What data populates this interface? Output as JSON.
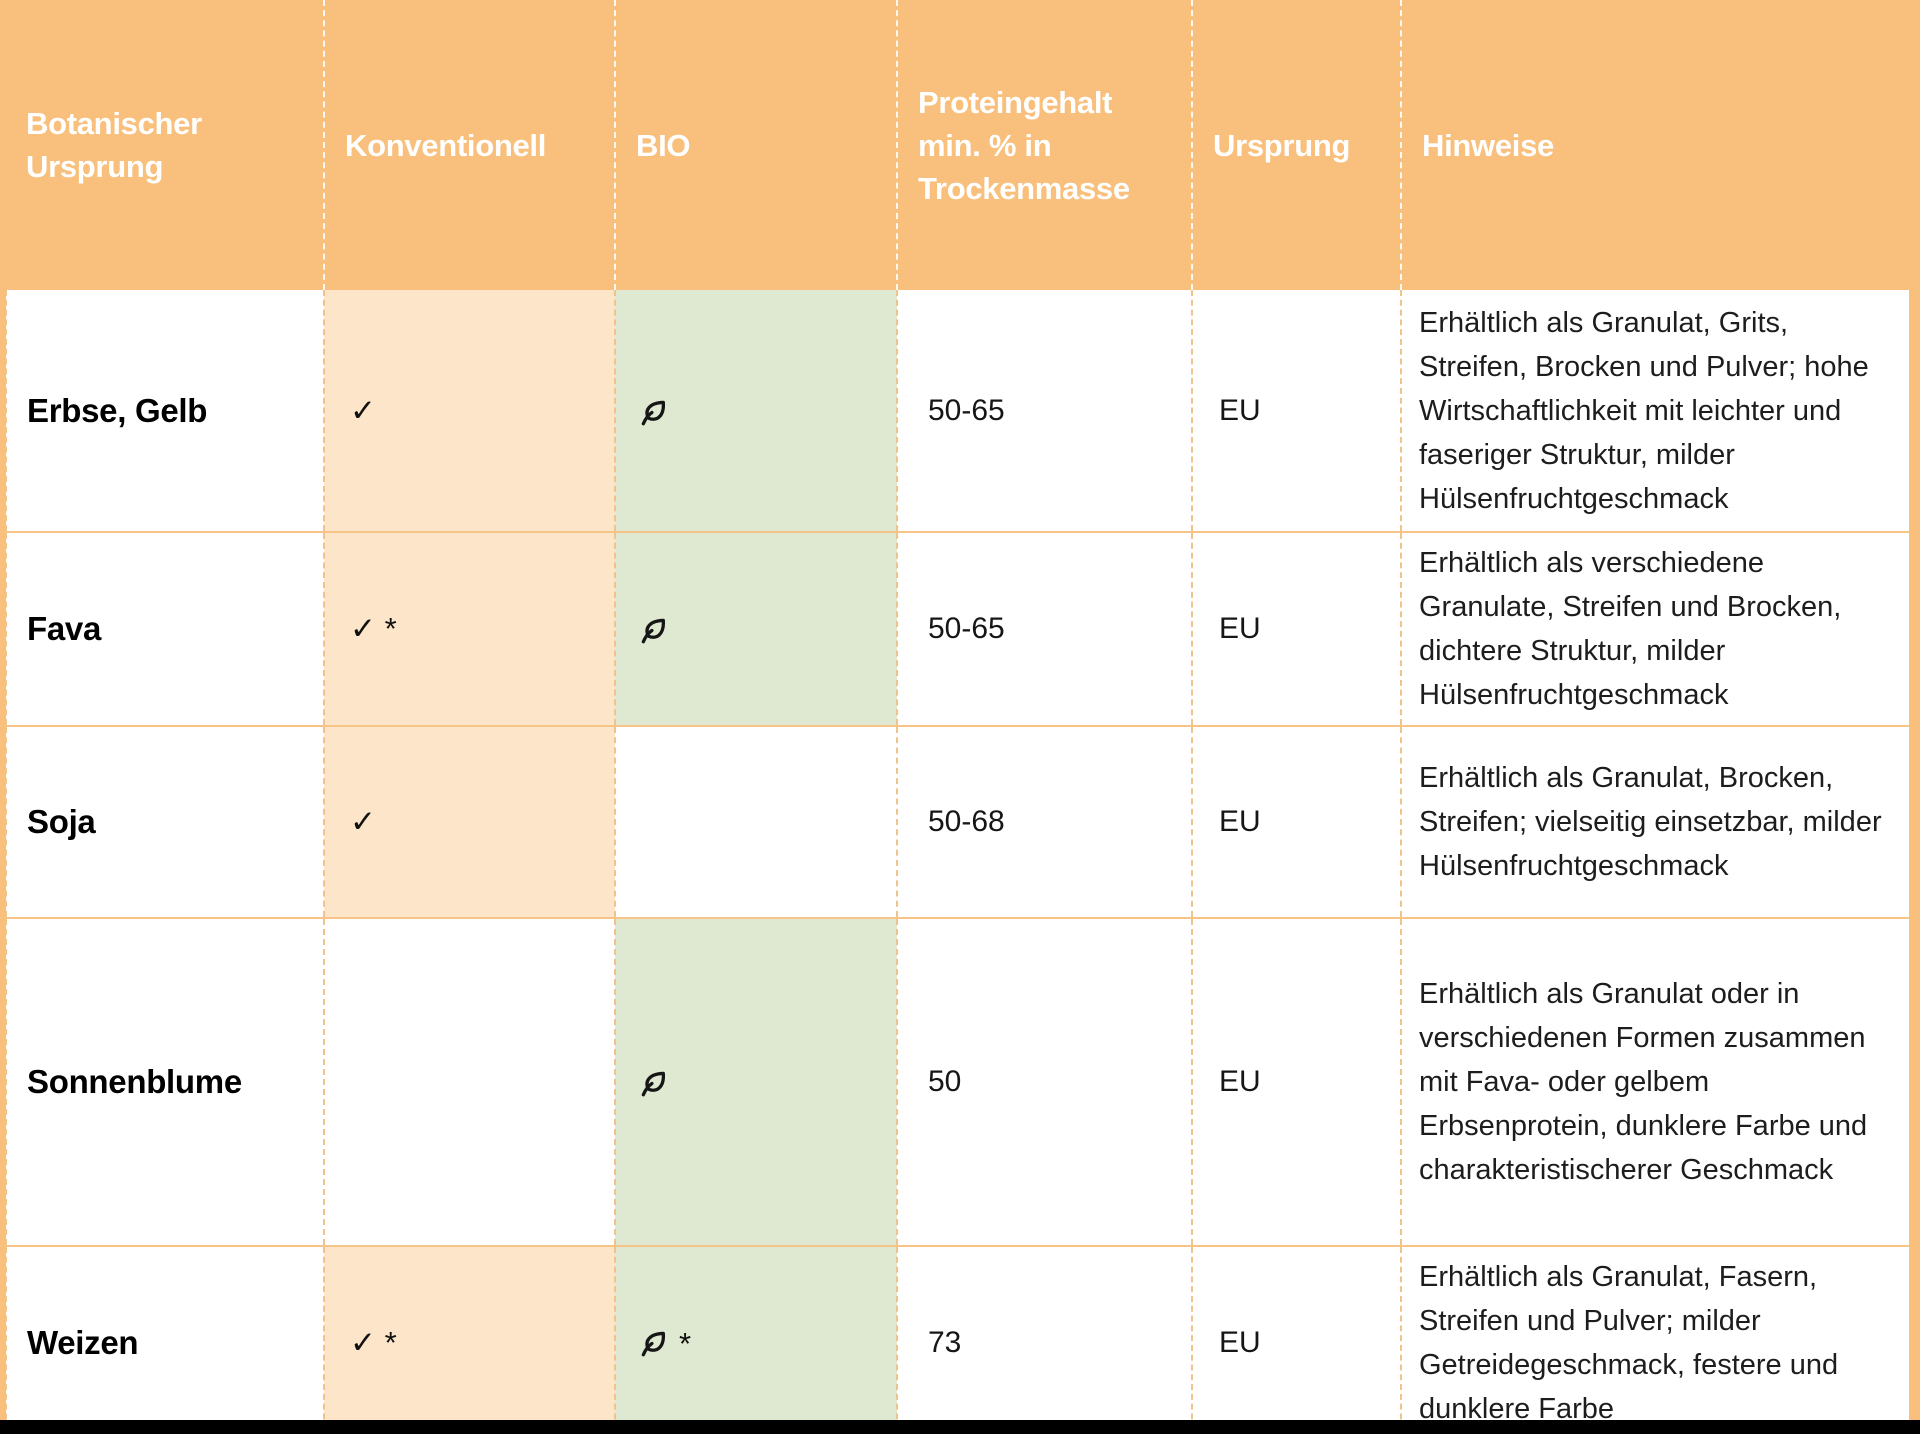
{
  "table": {
    "columns": [
      {
        "label": "Botanischer Ursprung"
      },
      {
        "label": "Konventionell"
      },
      {
        "label": "BIO"
      },
      {
        "label": "Proteingehalt min. % in Trockenmasse"
      },
      {
        "label": "Ursprung"
      },
      {
        "label": "Hinweise"
      }
    ],
    "rows": [
      {
        "name": "Erbse, Gelb",
        "konventionell": "✓",
        "bio_leaf": true,
        "bio_note": "",
        "protein": "50-65",
        "ursprung": "EU",
        "hinweise": "Erhältlich als Granulat, Grits, Streifen, Brocken und Pulver; hohe Wirtschaftlichkeit mit leichter und faseriger Struktur, milder Hülsenfruchtgeschmack"
      },
      {
        "name": "Fava",
        "konventionell": "✓ *",
        "bio_leaf": true,
        "bio_note": "",
        "protein": "50-65",
        "ursprung": "EU",
        "hinweise": "Erhältlich als verschiedene Granulate, Streifen und Brocken, dichtere Struktur, milder Hülsenfruchtgeschmack"
      },
      {
        "name": "Soja",
        "konventionell": "✓",
        "bio_leaf": false,
        "bio_note": "",
        "protein": "50-68",
        "ursprung": "EU",
        "hinweise": "Erhältlich als Granulat, Brocken, Streifen; vielseitig einsetzbar, milder Hülsenfruchtgeschmack"
      },
      {
        "name": "Sonnenblume",
        "konventionell": "",
        "bio_leaf": true,
        "bio_note": "",
        "protein": "50",
        "ursprung": "EU",
        "hinweise": "Erhältlich als Granulat oder in verschiedenen Formen zusammen mit Fava- oder gelbem Erbsenprotein, dunklere Farbe und charakteristischerer Geschmack"
      },
      {
        "name": "Weizen",
        "konventionell": "✓ *",
        "bio_leaf": true,
        "bio_note": "*",
        "protein": "73",
        "ursprung": "EU",
        "hinweise": "Erhältlich als Granulat, Fasern, Streifen und Pulver; milder Getreidegeschmack, festere und dunklere Farbe"
      }
    ]
  },
  "icons": {
    "check": "✓",
    "leaf": "leaf-icon",
    "asterisk": "*"
  },
  "colors": {
    "header_bg": "#f8c07c",
    "header_text": "#ffffff",
    "konventionell_cell_bg": "#fce5c9",
    "bio_cell_bg": "#dfe8d0",
    "row_separator": "#f5c486",
    "column_separator": "#f0c28c",
    "bottom_bar": "#000000"
  }
}
